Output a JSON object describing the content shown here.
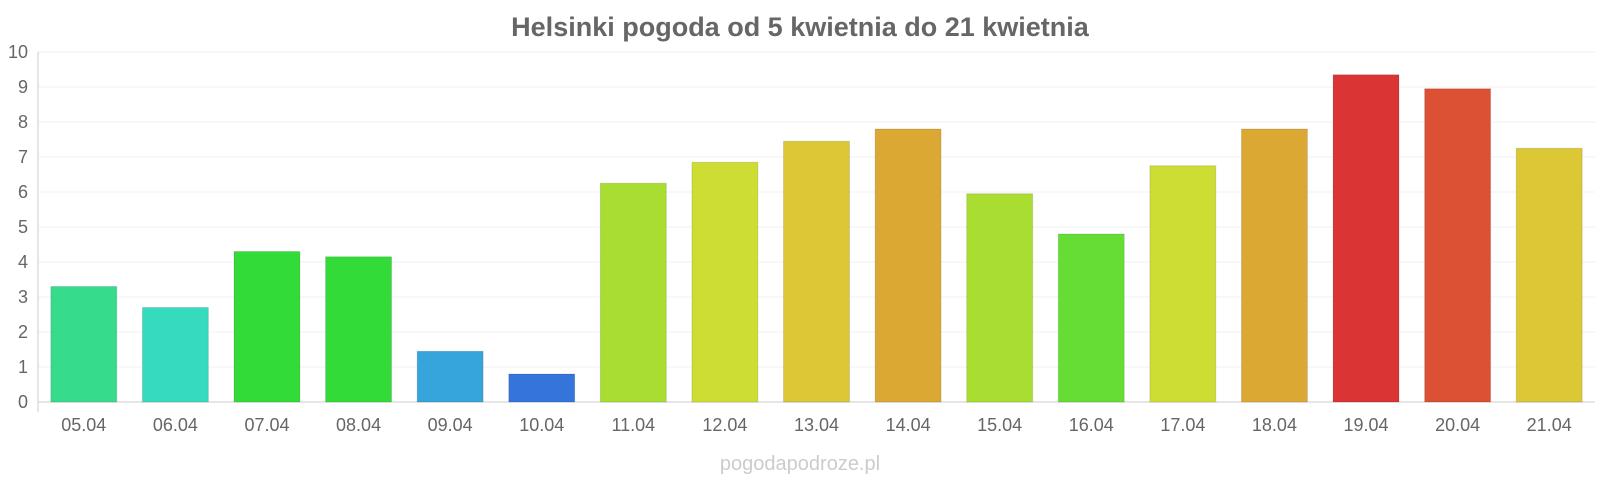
{
  "chart_data": {
    "type": "bar",
    "title": "Helsinki pogoda od 5 kwietnia do 21 kwietnia",
    "xlabel": "",
    "ylabel": "",
    "ylim": [
      0,
      10
    ],
    "yticks": [
      "0",
      "1",
      "2",
      "3",
      "4",
      "5",
      "6",
      "7",
      "8",
      "9",
      "10"
    ],
    "grid": true,
    "categories": [
      "05.04",
      "06.04",
      "07.04",
      "08.04",
      "09.04",
      "10.04",
      "11.04",
      "12.04",
      "13.04",
      "14.04",
      "15.04",
      "16.04",
      "17.04",
      "18.04",
      "19.04",
      "20.04",
      "21.04"
    ],
    "values": [
      3.3,
      2.7,
      4.3,
      4.15,
      1.45,
      0.8,
      6.25,
      6.85,
      7.45,
      7.8,
      5.95,
      4.8,
      6.75,
      7.8,
      9.35,
      8.95,
      7.25
    ],
    "colors": [
      "#36db8b",
      "#36dbbd",
      "#33db38",
      "#33db38",
      "#36a5db",
      "#3474db",
      "#a9dd32",
      "#cedd34",
      "#dcc734",
      "#dba834",
      "#a9dd32",
      "#66dd34",
      "#cedd34",
      "#dba834",
      "#db3434",
      "#dc5034",
      "#dcc734"
    ]
  },
  "watermark": "pogodapodroze.pl"
}
